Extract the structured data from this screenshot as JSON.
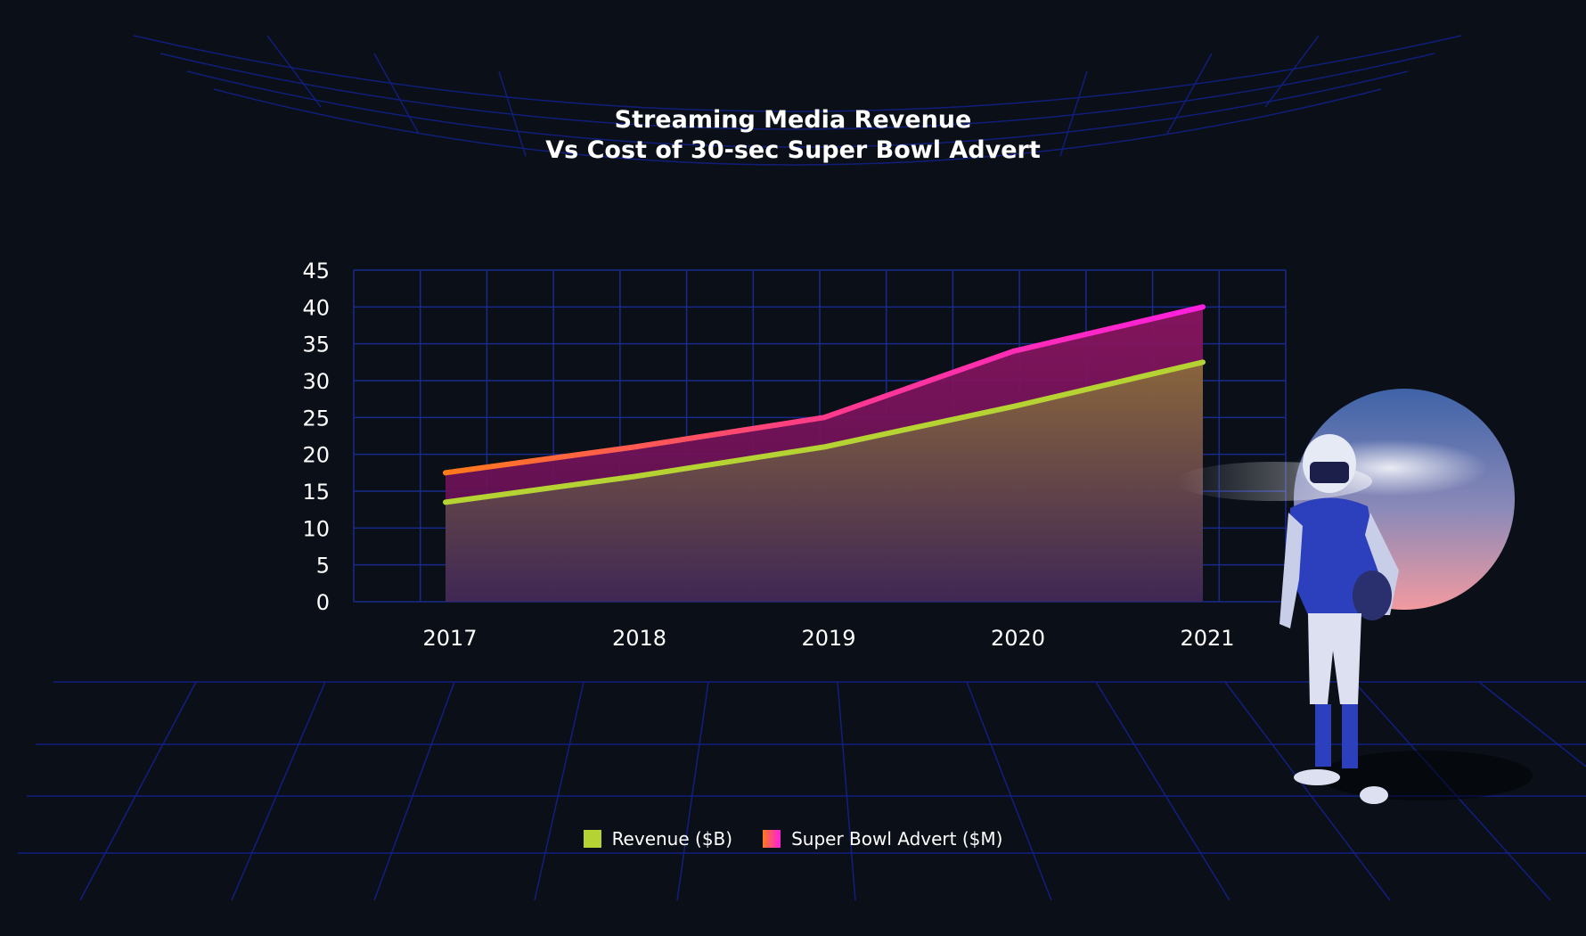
{
  "colors": {
    "background": "#0a0f18",
    "grid": "#1a2a8c",
    "revenue_line": "#b5d333",
    "advert_line_start": "#ff7a1a",
    "advert_line_end": "#ff1fe0"
  },
  "chart_data": {
    "type": "area",
    "title": [
      "Streaming Media Revenue",
      "Vs Cost of 30-sec Super Bowl Advert"
    ],
    "categories": [
      "2017",
      "2018",
      "2019",
      "2020",
      "2021"
    ],
    "series": [
      {
        "name": "Revenue ($B)",
        "values": [
          13.5,
          17,
          21,
          26.5,
          32.5
        ]
      },
      {
        "name": "Super Bowl Advert ($M)",
        "values": [
          17.5,
          21,
          25,
          34,
          40
        ]
      }
    ],
    "ylim": [
      0,
      45
    ],
    "yticks": [
      "0",
      "5",
      "10",
      "15",
      "20",
      "25",
      "30",
      "35",
      "40",
      "45"
    ],
    "grid": true,
    "legend": "bottom-center"
  }
}
